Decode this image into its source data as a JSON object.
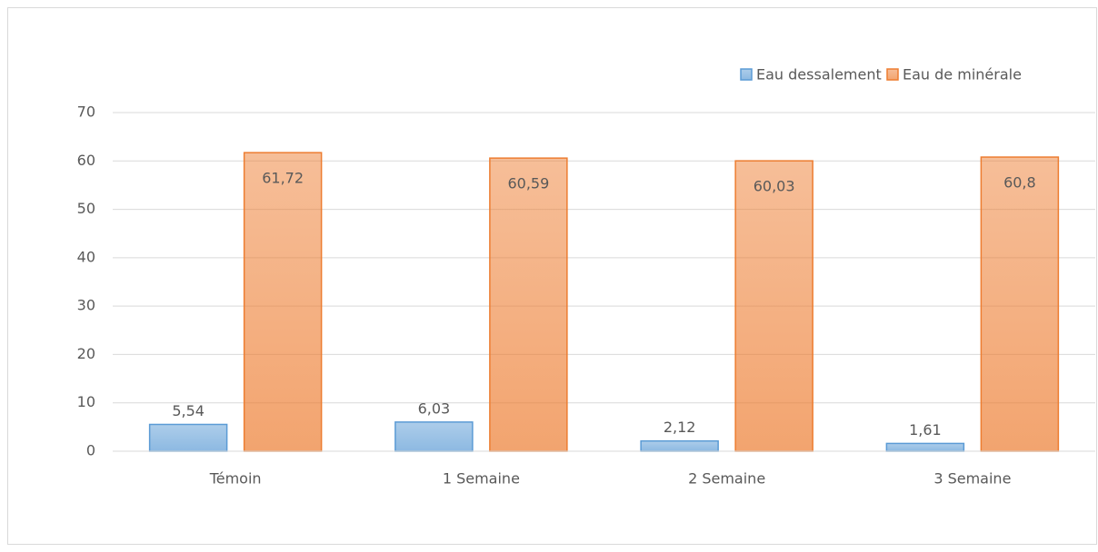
{
  "chart_data": {
    "type": "bar",
    "categories": [
      "Témoin",
      "1 Semaine",
      "2 Semaine",
      "3 Semaine"
    ],
    "series": [
      {
        "name": "Eau dessalement",
        "color": "#5b9bd5",
        "values": [
          5.54,
          6.03,
          2.12,
          1.61
        ],
        "value_labels": [
          "5,54",
          "6,03",
          "2,12",
          "1,61"
        ]
      },
      {
        "name": "Eau de minérale",
        "color": "#ed7d31",
        "values": [
          61.72,
          60.59,
          60.03,
          60.8
        ],
        "value_labels": [
          "61,72",
          "60,59",
          "60,03",
          "60,8"
        ]
      }
    ],
    "ylim": [
      0,
      70
    ],
    "yticks": [
      0,
      10,
      20,
      30,
      40,
      50,
      60,
      70
    ],
    "grid": true,
    "legend": "top-right"
  }
}
